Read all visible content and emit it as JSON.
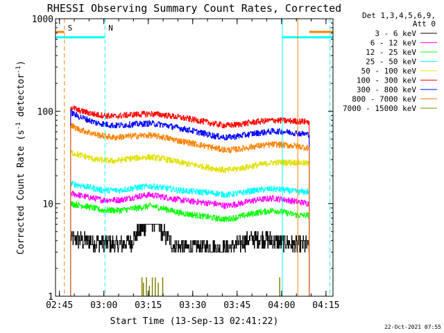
{
  "chart_data": {
    "type": "line",
    "title": "RHESSI Observing Summary Count Rates, Corrected",
    "xlabel": "Start Time (13-Sep-13 02:41:22)",
    "ylabel_main": "Corrected Count Rate (s",
    "ylabel_sup1": "-1",
    "ylabel_mid": " detector",
    "ylabel_sup2": "-1",
    "ylabel_end": ")",
    "yscale": "log",
    "ylim": [
      1,
      1000
    ],
    "xlim_minutes": [
      2.3,
      96.0
    ],
    "x_ticks": [
      {
        "label": "02:45",
        "minute": 3.63
      },
      {
        "label": "03:00",
        "minute": 18.63
      },
      {
        "label": "03:15",
        "minute": 33.63
      },
      {
        "label": "03:30",
        "minute": 48.63
      },
      {
        "label": "03:45",
        "minute": 63.63
      },
      {
        "label": "04:00",
        "minute": 78.63
      },
      {
        "label": "04:15",
        "minute": 93.63
      }
    ],
    "y_ticks": [
      {
        "label": "1",
        "value": 1
      },
      {
        "label": "10",
        "value": 10
      },
      {
        "label": "100",
        "value": 100
      },
      {
        "label": "1000",
        "value": 1000
      }
    ],
    "legend": {
      "position": "right",
      "header1": "Det 1,3,4,5,6,9,",
      "header2": "Att 0"
    },
    "data_start_minute": 7.4,
    "data_end_minute": 88.0,
    "series": [
      {
        "name": "3 - 6 keV",
        "color": "#000000",
        "x": [
          7.4,
          12,
          18,
          24,
          28,
          32,
          34,
          36,
          38,
          42,
          48,
          54,
          58,
          62,
          68,
          72,
          76,
          80,
          84,
          88
        ],
        "y": [
          4.2,
          4.0,
          3.8,
          3.6,
          4.0,
          5.5,
          6.5,
          6.8,
          5.0,
          3.6,
          3.4,
          3.4,
          3.2,
          3.4,
          4.2,
          4.2,
          4.0,
          3.8,
          3.6,
          3.6
        ]
      },
      {
        "name": "6 - 12 keV",
        "color": "#ff00ff",
        "x": [
          7.4,
          12,
          18,
          24,
          30,
          34,
          38,
          44,
          50,
          56,
          60,
          64,
          70,
          76,
          80,
          84,
          88
        ],
        "y": [
          13,
          12,
          11,
          11,
          12,
          12.5,
          12,
          11,
          10.5,
          10,
          9.5,
          10,
          11,
          11.5,
          11,
          10.5,
          10
        ]
      },
      {
        "name": "12 - 25 keV",
        "color": "#00ff00",
        "x": [
          7.4,
          12,
          18,
          24,
          30,
          34,
          38,
          44,
          50,
          56,
          60,
          64,
          70,
          76,
          80,
          84,
          88
        ],
        "y": [
          10,
          9.5,
          8.5,
          8.5,
          9.0,
          9.5,
          9.0,
          8.0,
          7.5,
          7.0,
          6.8,
          7.2,
          8.0,
          8.5,
          8.0,
          7.5,
          7.5
        ]
      },
      {
        "name": "25 - 50 keV",
        "color": "#00ffff",
        "x": [
          7.4,
          12,
          18,
          24,
          30,
          34,
          38,
          44,
          50,
          56,
          60,
          64,
          70,
          76,
          80,
          84,
          88
        ],
        "y": [
          16.5,
          15.5,
          14,
          14,
          15,
          15.5,
          15,
          14,
          13.5,
          13,
          12.5,
          13,
          14,
          14.5,
          14,
          13.5,
          13.5
        ]
      },
      {
        "name": "50 - 100 keV",
        "color": "#e0e000",
        "x": [
          7.4,
          10,
          16,
          22,
          28,
          34,
          38,
          44,
          50,
          56,
          60,
          64,
          70,
          76,
          80,
          84,
          88
        ],
        "y": [
          36,
          34,
          30,
          29,
          31,
          32,
          31,
          28,
          26,
          24,
          23,
          24,
          26,
          28,
          28,
          28,
          27
        ]
      },
      {
        "name": "100 - 300 keV",
        "color": "#ff0000",
        "x": [
          7.4,
          10,
          16,
          22,
          28,
          34,
          38,
          44,
          50,
          56,
          60,
          64,
          70,
          76,
          80,
          84,
          88
        ],
        "y": [
          112,
          102,
          92,
          88,
          92,
          94,
          92,
          86,
          80,
          73,
          70,
          72,
          77,
          80,
          79,
          78,
          77
        ]
      },
      {
        "name": "300 - 800 keV",
        "color": "#0000ff",
        "x": [
          7.4,
          10,
          16,
          22,
          28,
          34,
          38,
          44,
          50,
          56,
          60,
          64,
          70,
          76,
          80,
          84,
          88
        ],
        "y": [
          97,
          88,
          75,
          70,
          72,
          74,
          72,
          66,
          60,
          54,
          52,
          54,
          58,
          61,
          60,
          58,
          56
        ]
      },
      {
        "name": "800 - 7000 keV",
        "color": "#ff8000",
        "x": [
          7.4,
          10,
          16,
          22,
          28,
          34,
          38,
          44,
          50,
          56,
          60,
          64,
          70,
          76,
          80,
          84,
          88
        ],
        "y": [
          70,
          64,
          56,
          52,
          54,
          55,
          53,
          48,
          44,
          40,
          38,
          39,
          42,
          44,
          43,
          42,
          40
        ]
      },
      {
        "name": "7000 - 15000 keV",
        "color": "#808000",
        "x": [
          7.4,
          88
        ],
        "y": [
          1,
          1
        ]
      }
    ],
    "spikes_7000_15000": [
      {
        "minute": 31.5,
        "value": 1.6
      },
      {
        "minute": 32.0,
        "value": 1.4
      },
      {
        "minute": 33.0,
        "value": 1.6
      },
      {
        "minute": 34.0,
        "value": 1.3
      },
      {
        "minute": 35.0,
        "value": 1.6
      },
      {
        "minute": 36.0,
        "value": 1.6
      },
      {
        "minute": 37.0,
        "value": 1.4
      },
      {
        "minute": 38.5,
        "value": 1.6
      },
      {
        "minute": 78.0,
        "value": 1.6
      }
    ],
    "markers": [
      {
        "label": "S",
        "color": "#ff8000",
        "minute": 5.3
      },
      {
        "label": "N",
        "color": "#00ffff",
        "minute": 19.0
      },
      {
        "label": "",
        "color": "#00ffff",
        "minute": 78.9
      },
      {
        "label": "",
        "color": "#ff8000",
        "minute": 84.1
      },
      {
        "label": "",
        "color": "#00ffff",
        "minute": 95.0
      }
    ],
    "intervals": [
      {
        "kind": "S",
        "color": "#ff8000",
        "from": 2.3,
        "to": 5.3,
        "value": 720
      },
      {
        "kind": "N",
        "color": "#00ffff",
        "from": 2.3,
        "to": 19.0,
        "value": 630
      },
      {
        "kind": "N",
        "color": "#00ffff",
        "from": 78.9,
        "to": 96.0,
        "value": 630
      },
      {
        "kind": "S",
        "color": "#ff8000",
        "from": 88.0,
        "to": 96.0,
        "value": 720
      }
    ],
    "footer_date": "22-Oct-2021 07:55"
  }
}
